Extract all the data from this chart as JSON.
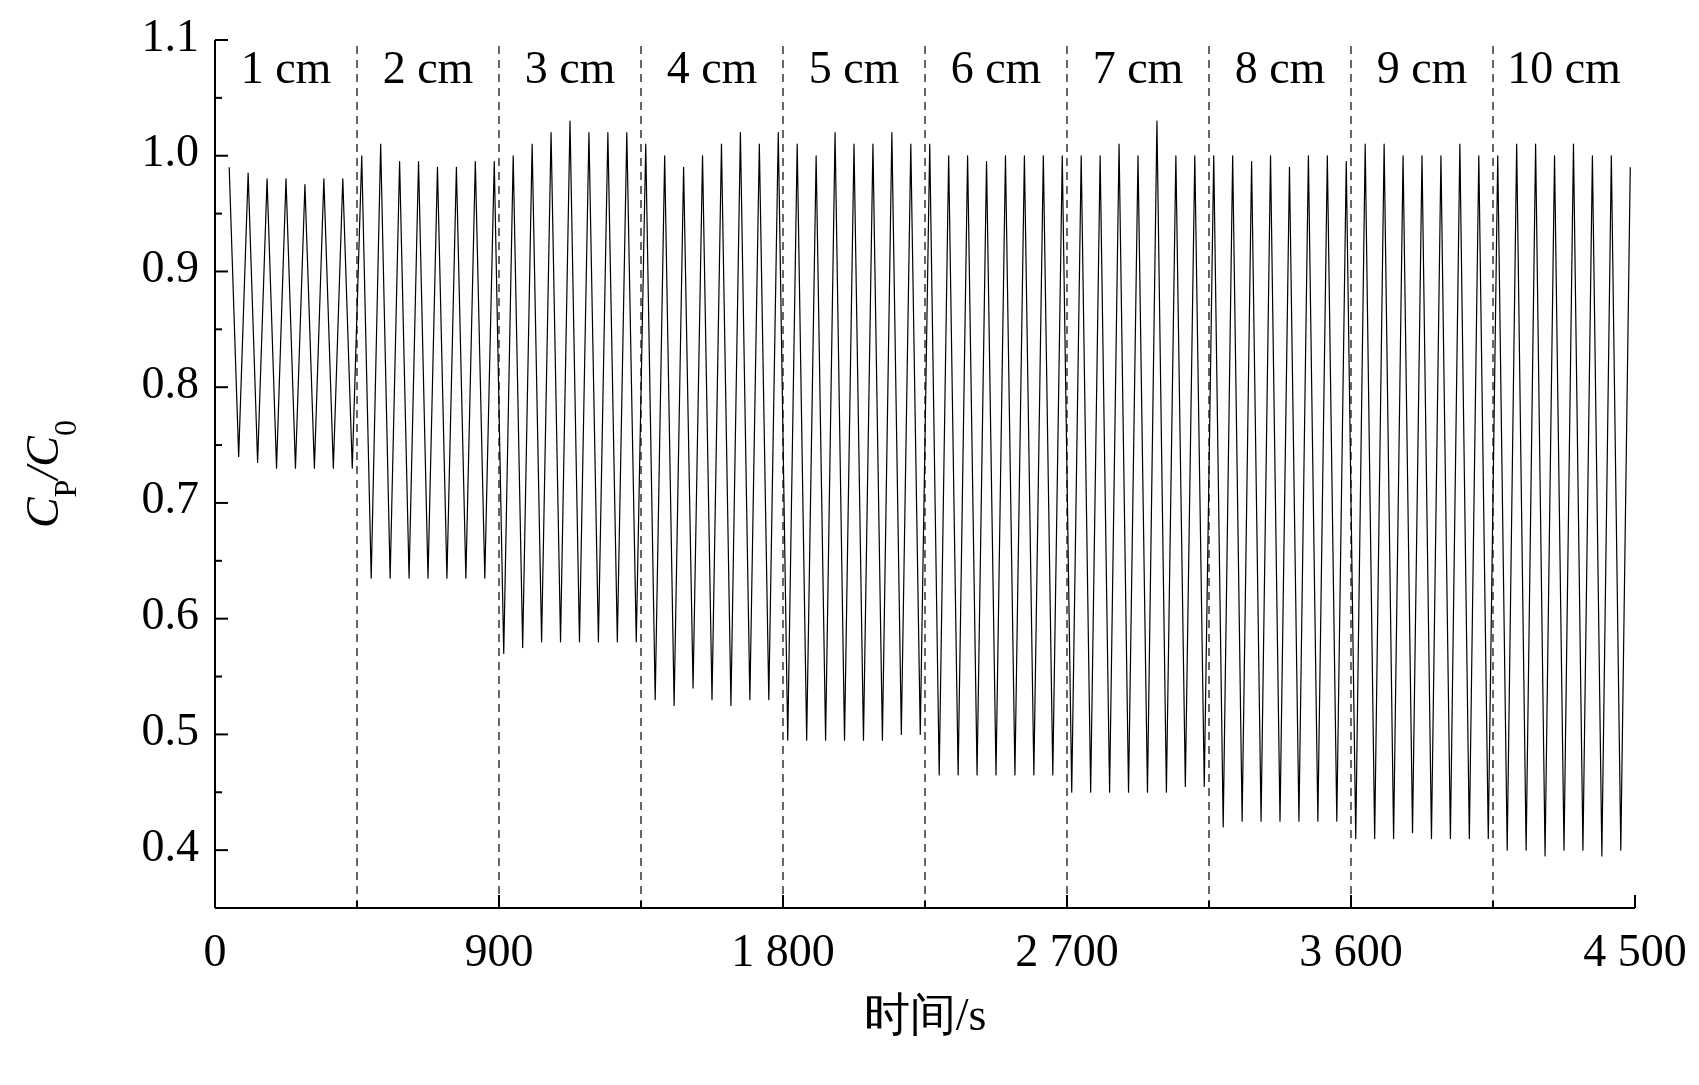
{
  "chart_data": {
    "type": "line",
    "xlabel": "时间/s",
    "ylabel": "C$_{P}$/C$_{0}$",
    "xlim": [
      0,
      4500
    ],
    "ylim": [
      0.35,
      1.1
    ],
    "xticks": [
      0,
      {
        "value": 450,
        "label": null
      },
      900,
      {
        "value": 1350,
        "label": null
      },
      {
        "value": 1800,
        "label": "1 800"
      },
      {
        "value": 2250,
        "label": null
      },
      {
        "value": 2700,
        "label": "2 700"
      },
      {
        "value": 3150,
        "label": null
      },
      {
        "value": 3600,
        "label": "3 600"
      },
      {
        "value": 4050,
        "label": null
      },
      {
        "value": 4500,
        "label": "4 500"
      }
    ],
    "yticks": [
      {
        "value": 0.35,
        "label": null
      },
      0.4,
      {
        "value": 0.45,
        "label": null
      },
      0.5,
      {
        "value": 0.55,
        "label": null
      },
      0.6,
      {
        "value": 0.65,
        "label": null
      },
      0.7,
      {
        "value": 0.75,
        "label": null
      },
      0.8,
      {
        "value": 0.85,
        "label": null
      },
      0.9,
      {
        "value": 0.95,
        "label": null
      },
      {
        "value": 1.0,
        "label": "1.0"
      },
      {
        "value": 1.05,
        "label": null
      },
      1.1
    ],
    "grid": false,
    "marker": "none",
    "line_style": "solid",
    "ref_lines": [
      {
        "axis": "x",
        "value": 450,
        "line_style": "dashed"
      },
      {
        "axis": "x",
        "value": 900,
        "line_style": "dashed"
      },
      {
        "axis": "x",
        "value": 1350,
        "line_style": "dashed"
      },
      {
        "axis": "x",
        "value": 1800,
        "line_style": "dashed"
      },
      {
        "axis": "x",
        "value": 2250,
        "line_style": "dashed"
      },
      {
        "axis": "x",
        "value": 2700,
        "line_style": "dashed"
      },
      {
        "axis": "x",
        "value": 3150,
        "line_style": "dashed"
      },
      {
        "axis": "x",
        "value": 3600,
        "line_style": "dashed"
      },
      {
        "axis": "x",
        "value": 4050,
        "line_style": "dashed"
      }
    ],
    "annotations": [
      "1 cm",
      "2 cm",
      "3 cm",
      "4 cm",
      "5 cm",
      "6 cm",
      "7 cm",
      "8 cm",
      "9 cm",
      "10 cm"
    ],
    "series": [
      {
        "color": "#000000",
        "x": [
          45,
          75,
          105,
          135,
          165,
          195,
          225,
          255,
          285,
          315,
          345,
          375,
          405,
          435,
          465,
          495,
          525,
          555,
          585,
          615,
          645,
          675,
          705,
          735,
          765,
          795,
          825,
          855,
          885,
          915,
          945,
          975,
          1005,
          1035,
          1065,
          1095,
          1125,
          1155,
          1185,
          1215,
          1245,
          1275,
          1305,
          1335,
          1365,
          1395,
          1425,
          1455,
          1485,
          1515,
          1545,
          1575,
          1605,
          1635,
          1665,
          1695,
          1725,
          1755,
          1785,
          1815,
          1845,
          1875,
          1905,
          1935,
          1965,
          1995,
          2025,
          2055,
          2085,
          2115,
          2145,
          2175,
          2205,
          2235,
          2265,
          2295,
          2325,
          2355,
          2385,
          2415,
          2445,
          2475,
          2505,
          2535,
          2565,
          2595,
          2625,
          2655,
          2685,
          2715,
          2745,
          2775,
          2805,
          2835,
          2865,
          2895,
          2925,
          2955,
          2985,
          3015,
          3045,
          3075,
          3105,
          3135,
          3165,
          3195,
          3225,
          3255,
          3285,
          3315,
          3345,
          3375,
          3405,
          3435,
          3465,
          3495,
          3525,
          3555,
          3585,
          3615,
          3645,
          3675,
          3705,
          3735,
          3765,
          3795,
          3825,
          3855,
          3885,
          3915,
          3945,
          3975,
          4005,
          4035,
          4065,
          4095,
          4125,
          4155,
          4185,
          4215,
          4245,
          4275,
          4305,
          4335,
          4365,
          4395,
          4425,
          4455,
          4485
        ],
        "values": [
          0.99,
          0.74,
          0.985,
          0.735,
          0.98,
          0.73,
          0.98,
          0.73,
          0.975,
          0.73,
          0.98,
          0.73,
          0.98,
          0.73,
          1.0,
          0.635,
          1.01,
          0.635,
          0.995,
          0.635,
          0.995,
          0.635,
          0.99,
          0.635,
          0.99,
          0.635,
          0.995,
          0.635,
          0.995,
          0.57,
          1.0,
          0.575,
          1.01,
          0.58,
          1.02,
          0.58,
          1.03,
          0.58,
          1.02,
          0.58,
          1.02,
          0.58,
          1.02,
          0.58,
          1.01,
          0.53,
          1.0,
          0.525,
          0.99,
          0.54,
          1.0,
          0.53,
          1.01,
          0.525,
          1.02,
          0.53,
          1.01,
          0.53,
          1.02,
          0.495,
          1.01,
          0.495,
          1.0,
          0.495,
          1.02,
          0.495,
          1.01,
          0.495,
          1.01,
          0.495,
          1.02,
          0.5,
          1.01,
          0.5,
          1.01,
          0.465,
          1.0,
          0.465,
          1.0,
          0.465,
          0.995,
          0.465,
          1.0,
          0.465,
          1.0,
          0.465,
          1.0,
          0.465,
          1.0,
          0.45,
          1.0,
          0.45,
          1.0,
          0.45,
          1.01,
          0.45,
          1.0,
          0.45,
          1.03,
          0.45,
          1.0,
          0.455,
          1.0,
          0.455,
          1.0,
          0.42,
          1.0,
          0.425,
          0.995,
          0.425,
          1.0,
          0.425,
          0.99,
          0.425,
          1.0,
          0.425,
          1.0,
          0.425,
          0.995,
          0.41,
          1.01,
          0.41,
          1.01,
          0.41,
          1.0,
          0.415,
          1.0,
          0.41,
          1.0,
          0.41,
          1.01,
          0.41,
          1.0,
          0.41,
          1.0,
          0.4,
          1.01,
          0.4,
          1.01,
          0.395,
          1.0,
          0.4,
          1.01,
          0.4,
          1.0,
          0.395,
          1.0,
          0.4,
          0.99
        ]
      }
    ]
  }
}
